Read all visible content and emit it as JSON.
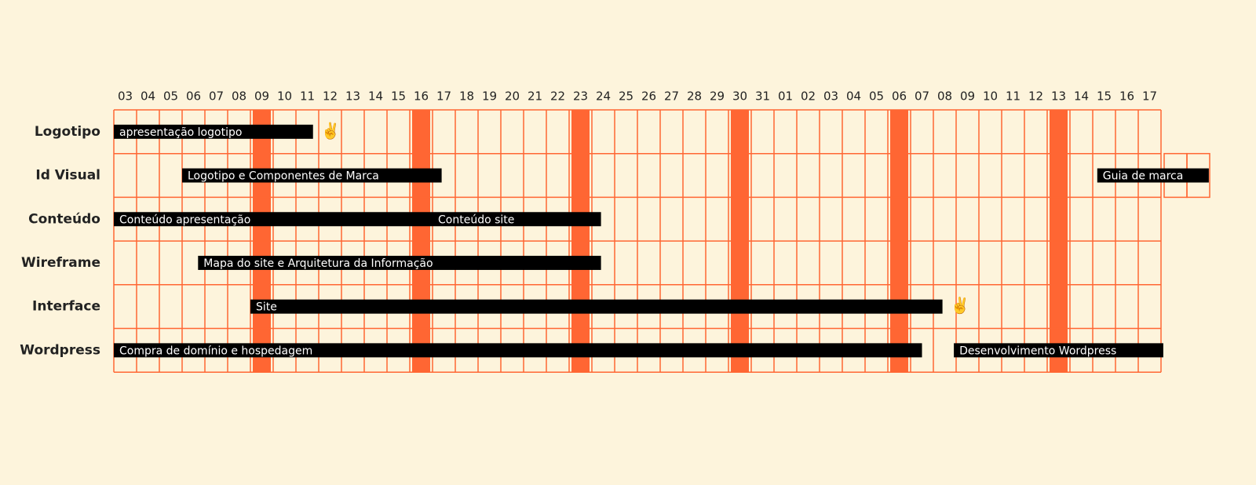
{
  "chart_data": {
    "type": "gantt",
    "categories": [
      "03",
      "04",
      "05",
      "06",
      "07",
      "08",
      "09",
      "10",
      "11",
      "12",
      "13",
      "14",
      "15",
      "16",
      "17",
      "18",
      "19",
      "20",
      "21",
      "22",
      "23",
      "24",
      "25",
      "26",
      "27",
      "28",
      "29",
      "30",
      "31",
      "01",
      "02",
      "03",
      "04",
      "05",
      "06",
      "07",
      "08",
      "09",
      "10",
      "11",
      "12",
      "13",
      "14",
      "15",
      "16",
      "17"
    ],
    "highlighted": [
      6,
      13,
      20,
      27,
      34,
      41
    ],
    "extra_cells": {
      "row": 1,
      "columns": [
        46,
        47
      ]
    },
    "color": "#ff6633",
    "bar_color": "#000000",
    "rows": [
      {
        "name": "Logotipo",
        "tasks": [
          {
            "label": "apresentação logotipo",
            "start": 0,
            "end": 8.75,
            "icon": "✌️"
          }
        ]
      },
      {
        "name": "Id Visual",
        "tasks": [
          {
            "label": "Logotipo e Componentes de Marca",
            "start": 3,
            "end": 14.4
          },
          {
            "label": "Guia de marca",
            "start": 43.2,
            "end": 48.1
          }
        ]
      },
      {
        "name": "Conteúdo",
        "tasks": [
          {
            "label": "Conteúdo apresentação",
            "start": 0,
            "end": 14
          },
          {
            "label": "Conteúdo site",
            "start": 14,
            "end": 21.4
          }
        ]
      },
      {
        "name": "Wireframe",
        "tasks": [
          {
            "label": "Mapa do site e Arquitetura da Informação",
            "start": 3.7,
            "end": 21.4
          }
        ]
      },
      {
        "name": "Interface",
        "tasks": [
          {
            "label": "Site",
            "start": 6,
            "end": 36.4,
            "icon": "✌️"
          }
        ]
      },
      {
        "name": "Wordpress",
        "tasks": [
          {
            "label": "Compra de domínio e hospedagem",
            "start": 0,
            "end": 35.5
          },
          {
            "label": "Desenvolvimento Wordpress",
            "start": 36.9,
            "end": 46.1
          }
        ]
      }
    ]
  }
}
